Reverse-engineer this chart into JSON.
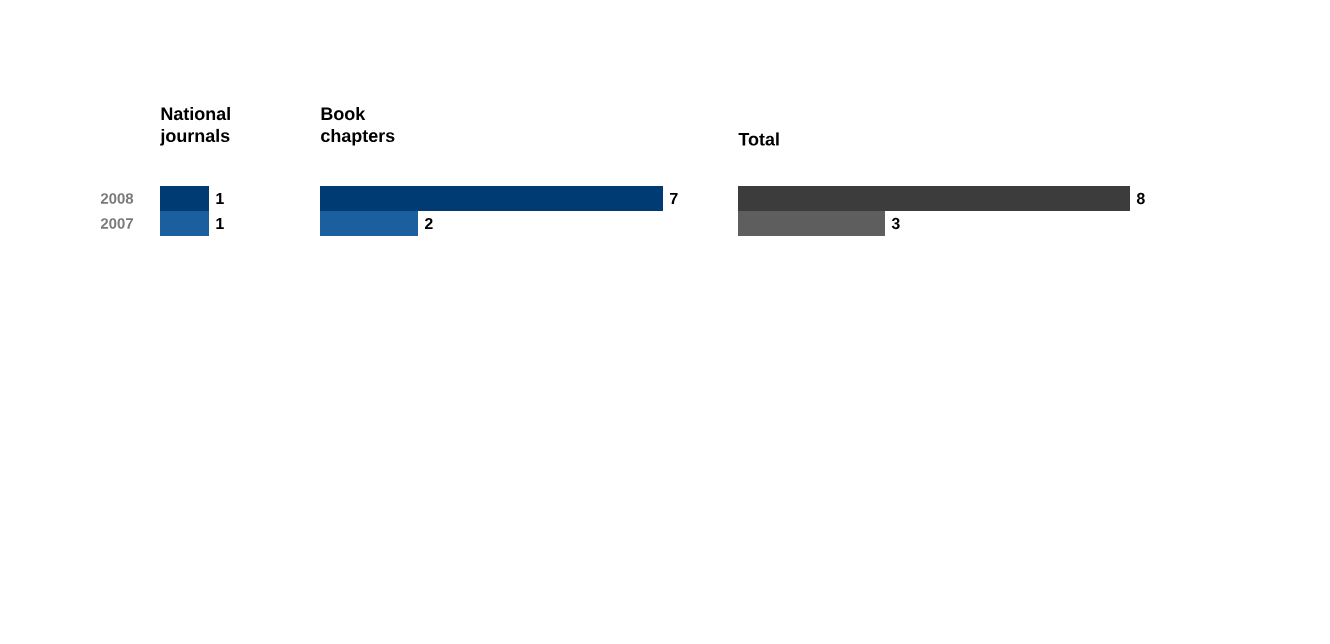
{
  "chart_data": [
    {
      "type": "bar",
      "orientation": "horizontal",
      "title": "National journals",
      "categories": [
        "2008",
        "2007"
      ],
      "values": [
        1,
        1
      ],
      "colors": [
        "#003b73",
        "#1c5f9f"
      ],
      "data_labels": true,
      "tick_labels": "y"
    },
    {
      "type": "bar",
      "orientation": "horizontal",
      "title": "Book chapters",
      "categories": [
        "2008",
        "2007"
      ],
      "values": [
        7,
        2
      ],
      "colors": [
        "#003b73",
        "#1c5f9f"
      ],
      "data_labels": true,
      "tick_labels": false
    },
    {
      "type": "bar",
      "orientation": "horizontal",
      "title": "Total",
      "categories": [
        "2008",
        "2007"
      ],
      "values": [
        8,
        3
      ],
      "colors": [
        "#3c3c3c",
        "#5e5e5e"
      ],
      "data_labels": true,
      "tick_labels": false
    }
  ]
}
